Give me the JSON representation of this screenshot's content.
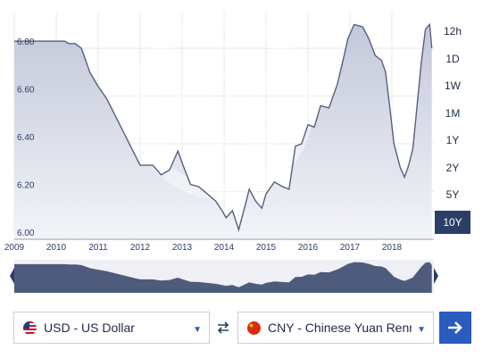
{
  "chart_data": {
    "type": "area",
    "xlim": [
      2009,
      2019.0
    ],
    "ylim": [
      6.0,
      6.95
    ],
    "y_ticks": [
      6.0,
      6.2,
      6.4,
      6.6,
      6.8
    ],
    "y_tick_labels": [
      "6.00",
      "6.20",
      "6.40",
      "6.60",
      "6.80"
    ],
    "x_ticks": [
      2009,
      2010,
      2011,
      2012,
      2013,
      2014,
      2015,
      2016,
      2017,
      2018
    ],
    "x_tick_labels": [
      "2009",
      "2010",
      "2011",
      "2012",
      "2013",
      "2014",
      "2015",
      "2016",
      "2017",
      "2018"
    ],
    "grid": true,
    "series": [
      {
        "x": [
          2008.7,
          2009.0,
          2009.5,
          2010.0,
          2010.2,
          2010.3,
          2010.45,
          2010.6,
          2010.8,
          2011.0,
          2011.2,
          2011.4,
          2011.6,
          2011.8,
          2012.0,
          2012.3,
          2012.5,
          2012.7,
          2012.9,
          2013.0,
          2013.2,
          2013.4,
          2013.6,
          2013.8,
          2013.95,
          2014.05,
          2014.2,
          2014.35,
          2014.5,
          2014.6,
          2014.75,
          2014.9,
          2015.0,
          2015.2,
          2015.4,
          2015.55,
          2015.7,
          2015.85,
          2016.0,
          2016.15,
          2016.3,
          2016.5,
          2016.7,
          2016.85,
          2016.95,
          2017.1,
          2017.3,
          2017.45,
          2017.6,
          2017.75,
          2017.85,
          2017.95,
          2018.05,
          2018.2,
          2018.3,
          2018.4,
          2018.5,
          2018.6,
          2018.7,
          2018.8,
          2018.9,
          2018.95
        ],
        "y": [
          6.83,
          6.83,
          6.83,
          6.83,
          6.83,
          6.82,
          6.82,
          6.8,
          6.7,
          6.64,
          6.59,
          6.52,
          6.45,
          6.38,
          6.31,
          6.31,
          6.27,
          6.29,
          6.37,
          6.32,
          6.23,
          6.22,
          6.19,
          6.16,
          6.12,
          6.09,
          6.12,
          6.04,
          6.14,
          6.21,
          6.16,
          6.13,
          6.19,
          6.24,
          6.22,
          6.21,
          6.39,
          6.4,
          6.48,
          6.47,
          6.56,
          6.55,
          6.65,
          6.76,
          6.84,
          6.9,
          6.89,
          6.84,
          6.77,
          6.75,
          6.7,
          6.55,
          6.4,
          6.3,
          6.26,
          6.31,
          6.38,
          6.56,
          6.74,
          6.88,
          6.9,
          6.8
        ]
      }
    ]
  },
  "range_buttons": {
    "b12h": "12h",
    "b1d": "1D",
    "b1w": "1W",
    "b1m": "1M",
    "b1y": "1Y",
    "b2y": "2Y",
    "b5y": "5Y",
    "b10y": "10Y"
  },
  "converter": {
    "from_currency": "USD - US Dollar",
    "to_currency": "CNY - Chinese Yuan Renminb"
  },
  "colors": {
    "accent": "#2a5bbf",
    "navy": "#2a3e66",
    "series_line": "#56607a",
    "series_fill": "#cdd1e0"
  },
  "icons": {
    "watermark": "xe-logo-icon",
    "swap": "swap-arrows-icon",
    "convert": "arrow-right-icon",
    "from_flag": "us-flag-icon",
    "to_flag": "china-flag-icon"
  }
}
